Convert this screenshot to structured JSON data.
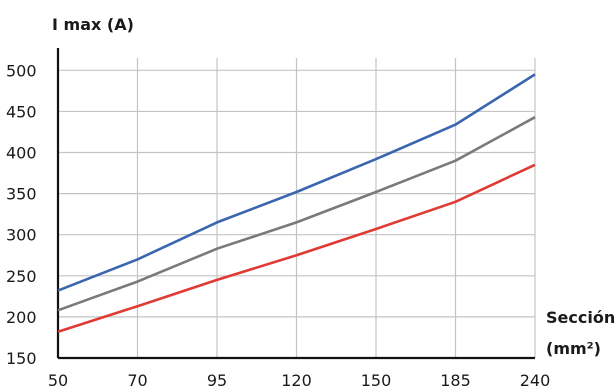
{
  "chart_data": {
    "type": "line",
    "ylabel": "I max (A)",
    "xlabel_line1": "Sección",
    "xlabel_line2": "(mm²)",
    "x": [
      50,
      70,
      95,
      120,
      150,
      185,
      240
    ],
    "x_tick_labels": [
      "50",
      "70",
      "95",
      "120",
      "150",
      "185",
      "240"
    ],
    "y_ticks": [
      150,
      200,
      250,
      300,
      350,
      400,
      450,
      500
    ],
    "y_tick_labels": [
      "150",
      "200",
      "250",
      "300",
      "350",
      "400",
      "450",
      "500"
    ],
    "ylim": [
      150,
      515
    ],
    "x_scale": "categorical-evenly-spaced",
    "grid": true,
    "legend": "none",
    "series": [
      {
        "color": "#3a66b0",
        "values": [
          232,
          270,
          315,
          352,
          392,
          434,
          495
        ]
      },
      {
        "color": "#7a7a7a",
        "values": [
          208,
          243,
          283,
          315,
          352,
          390,
          443
        ]
      },
      {
        "color": "#e03a35",
        "values": [
          182,
          213,
          245,
          275,
          307,
          340,
          385
        ]
      }
    ]
  }
}
